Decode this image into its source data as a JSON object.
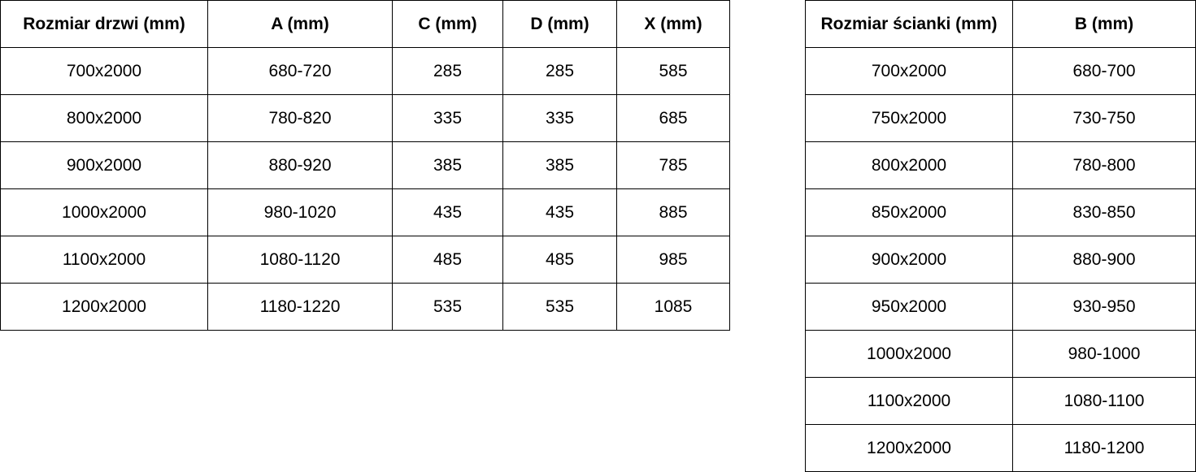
{
  "tables": [
    {
      "id": "doors",
      "headers": [
        "Rozmiar drzwi (mm)",
        "A (mm)",
        "C (mm)",
        "D (mm)",
        "X (mm)"
      ],
      "rows": [
        [
          "700x2000",
          "680-720",
          "285",
          "285",
          "585"
        ],
        [
          "800x2000",
          "780-820",
          "335",
          "335",
          "685"
        ],
        [
          "900x2000",
          "880-920",
          "385",
          "385",
          "785"
        ],
        [
          "1000x2000",
          "980-1020",
          "435",
          "435",
          "885"
        ],
        [
          "1100x2000",
          "1080-1120",
          "485",
          "485",
          "985"
        ],
        [
          "1200x2000",
          "1180-1220",
          "535",
          "535",
          "1085"
        ]
      ]
    },
    {
      "id": "walls",
      "headers": [
        "Rozmiar ścianki (mm)",
        "B (mm)"
      ],
      "rows": [
        [
          "700x2000",
          "680-700"
        ],
        [
          "750x2000",
          "730-750"
        ],
        [
          "800x2000",
          "780-800"
        ],
        [
          "850x2000",
          "830-850"
        ],
        [
          "900x2000",
          "880-900"
        ],
        [
          "950x2000",
          "930-950"
        ],
        [
          "1000x2000",
          "980-1000"
        ],
        [
          "1100x2000",
          "1080-1100"
        ],
        [
          "1200x2000",
          "1180-1200"
        ]
      ]
    }
  ],
  "colors": {
    "border": "#000000",
    "text": "#000000",
    "background": "#ffffff"
  }
}
